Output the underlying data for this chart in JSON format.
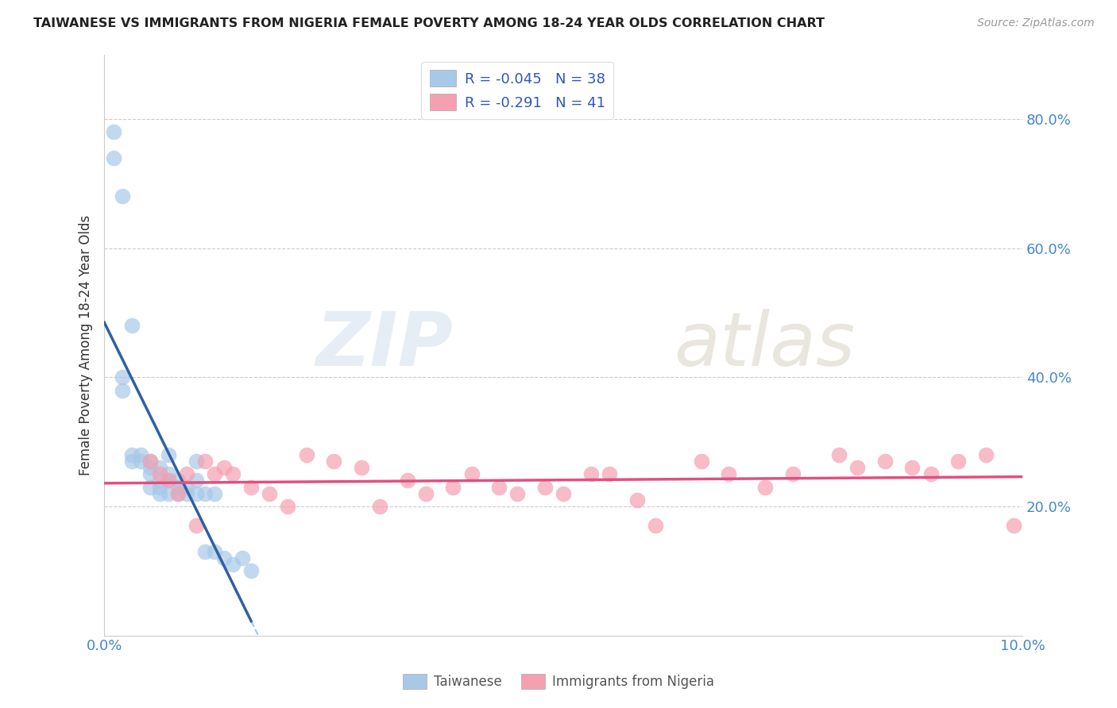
{
  "title": "TAIWANESE VS IMMIGRANTS FROM NIGERIA FEMALE POVERTY AMONG 18-24 YEAR OLDS CORRELATION CHART",
  "source": "Source: ZipAtlas.com",
  "ylabel": "Female Poverty Among 18-24 Year Olds",
  "xlim": [
    0.0,
    0.1
  ],
  "ylim": [
    0.0,
    0.9
  ],
  "yticks": [
    0.2,
    0.4,
    0.6,
    0.8
  ],
  "ytick_labels": [
    "20.0%",
    "40.0%",
    "60.0%",
    "80.0%"
  ],
  "xtick_labels": [
    "0.0%",
    "10.0%"
  ],
  "legend_line1": "R = -0.045   N = 38",
  "legend_line2": "R = -0.291   N = 41",
  "watermark_zip": "ZIP",
  "watermark_atlas": "atlas",
  "blue_color": "#a8c8e8",
  "pink_color": "#f4a0b0",
  "blue_line_color": "#3060a0",
  "pink_line_color": "#e05080",
  "blue_dash_color": "#90b8d8",
  "pink_dash_color": "#f4a0b0",
  "taiwan_x": [
    0.001,
    0.001,
    0.002,
    0.002,
    0.002,
    0.003,
    0.003,
    0.003,
    0.004,
    0.004,
    0.005,
    0.005,
    0.005,
    0.005,
    0.006,
    0.006,
    0.006,
    0.006,
    0.007,
    0.007,
    0.007,
    0.007,
    0.008,
    0.008,
    0.008,
    0.009,
    0.009,
    0.01,
    0.01,
    0.01,
    0.011,
    0.011,
    0.012,
    0.012,
    0.013,
    0.014,
    0.015,
    0.016
  ],
  "taiwan_y": [
    0.78,
    0.74,
    0.68,
    0.4,
    0.38,
    0.28,
    0.27,
    0.48,
    0.27,
    0.28,
    0.26,
    0.27,
    0.25,
    0.23,
    0.24,
    0.23,
    0.26,
    0.22,
    0.25,
    0.24,
    0.22,
    0.28,
    0.22,
    0.23,
    0.24,
    0.22,
    0.23,
    0.27,
    0.24,
    0.22,
    0.13,
    0.22,
    0.22,
    0.13,
    0.12,
    0.11,
    0.12,
    0.1
  ],
  "nigeria_x": [
    0.005,
    0.006,
    0.007,
    0.008,
    0.009,
    0.01,
    0.011,
    0.012,
    0.013,
    0.014,
    0.016,
    0.018,
    0.02,
    0.022,
    0.025,
    0.028,
    0.03,
    0.033,
    0.035,
    0.038,
    0.04,
    0.043,
    0.045,
    0.048,
    0.05,
    0.053,
    0.055,
    0.058,
    0.06,
    0.065,
    0.068,
    0.072,
    0.075,
    0.08,
    0.082,
    0.085,
    0.088,
    0.09,
    0.093,
    0.096,
    0.099
  ],
  "nigeria_y": [
    0.27,
    0.25,
    0.24,
    0.22,
    0.25,
    0.17,
    0.27,
    0.25,
    0.26,
    0.25,
    0.23,
    0.22,
    0.2,
    0.28,
    0.27,
    0.26,
    0.2,
    0.24,
    0.22,
    0.23,
    0.25,
    0.23,
    0.22,
    0.23,
    0.22,
    0.25,
    0.25,
    0.21,
    0.17,
    0.27,
    0.25,
    0.23,
    0.25,
    0.28,
    0.26,
    0.27,
    0.26,
    0.25,
    0.27,
    0.28,
    0.17
  ]
}
